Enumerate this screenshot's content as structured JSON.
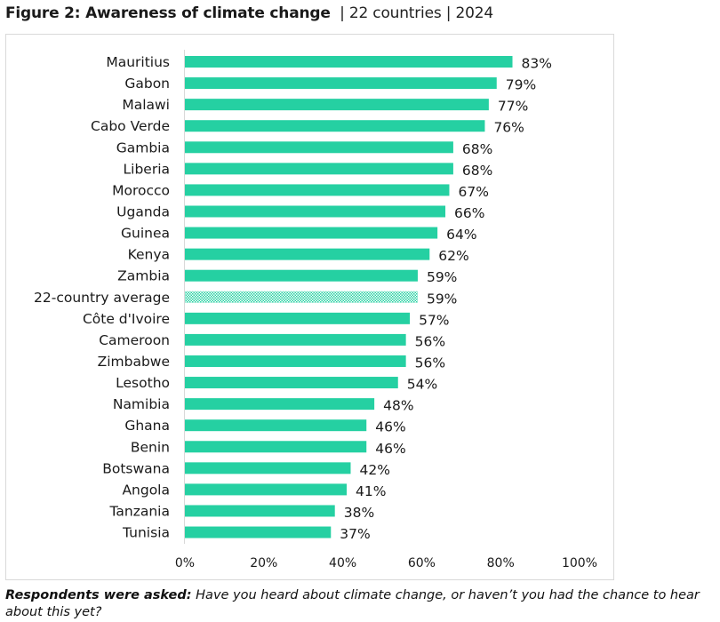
{
  "title": {
    "bold": "Figure 2: Awareness of climate change",
    "separator": "|",
    "subtitle_countries": "22 countries",
    "subtitle_year": "2024"
  },
  "colors": {
    "bar": "#25D0A2",
    "average_bar_pattern": "#25D0A2",
    "text": "#1a1a1a",
    "axis_line": "#d9d9d9"
  },
  "chart_data": {
    "type": "bar",
    "orientation": "horizontal",
    "title": "Figure 2: Awareness of climate change | 22 countries | 2024",
    "xlabel": "",
    "ylabel": "",
    "xlim": [
      0,
      100
    ],
    "x_ticks": [
      "0%",
      "20%",
      "40%",
      "60%",
      "80%",
      "100%"
    ],
    "x_tick_values": [
      0,
      20,
      40,
      60,
      80,
      100
    ],
    "grid": false,
    "legend": "none",
    "value_suffix": "%",
    "categories": [
      "Mauritius",
      "Gabon",
      "Malawi",
      "Cabo Verde",
      "Gambia",
      "Liberia",
      "Morocco",
      "Uganda",
      "Guinea",
      "Kenya",
      "Zambia",
      "22-country average",
      "Côte d'Ivoire",
      "Cameroon",
      "Zimbabwe",
      "Lesotho",
      "Namibia",
      "Ghana",
      "Benin",
      "Botswana",
      "Angola",
      "Tanzania",
      "Tunisia"
    ],
    "values": [
      83,
      79,
      77,
      76,
      68,
      68,
      67,
      66,
      64,
      62,
      59,
      59,
      57,
      56,
      56,
      54,
      48,
      46,
      46,
      42,
      41,
      38,
      37
    ],
    "highlight": [
      "22-country average"
    ],
    "data_labels": [
      "83%",
      "79%",
      "77%",
      "76%",
      "68%",
      "68%",
      "67%",
      "66%",
      "64%",
      "62%",
      "59%",
      "59%",
      "57%",
      "56%",
      "56%",
      "54%",
      "48%",
      "46%",
      "46%",
      "42%",
      "41%",
      "38%",
      "37%"
    ]
  },
  "footnote": {
    "label": "Respondents were asked:",
    "text": " Have you heard about climate change, or haven’t you had the chance to hear about this yet?"
  }
}
